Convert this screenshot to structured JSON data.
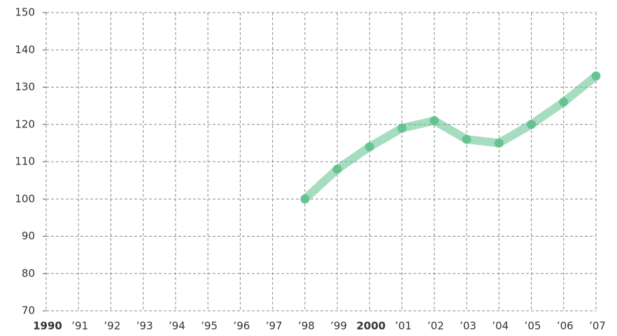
{
  "chart_data": {
    "type": "line",
    "categories": [
      "1990",
      "’91",
      "’92",
      "’93",
      "’94",
      "’95",
      "’96",
      "’97",
      "’98",
      "’99",
      "2000",
      "’01",
      "’02",
      "’03",
      "’04",
      "’05",
      "’06",
      "’07"
    ],
    "series": [
      {
        "color": "#5cc08a",
        "values": [
          null,
          null,
          null,
          null,
          null,
          null,
          null,
          null,
          100,
          108,
          114,
          119,
          121,
          116,
          115,
          120,
          126,
          133
        ]
      }
    ],
    "ylim": [
      70,
      150
    ],
    "yticks": [
      70,
      80,
      90,
      100,
      110,
      120,
      130,
      140,
      150
    ],
    "grid": true
  }
}
